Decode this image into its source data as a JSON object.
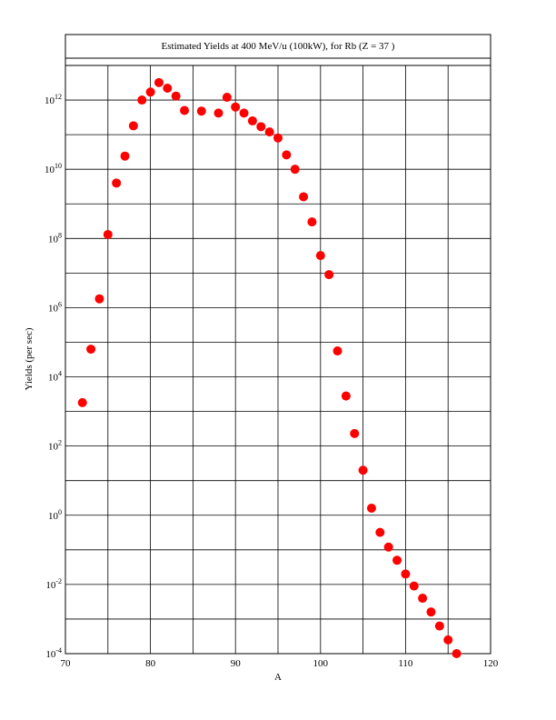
{
  "chart_data": {
    "type": "scatter",
    "title": "Estimated Yields at 400 MeV/u (100kW), for Rb (Z = 37 )",
    "xlabel": "A",
    "ylabel": "Yields (per sec)",
    "xlim": [
      70,
      120
    ],
    "ylim_log10": [
      -4,
      13
    ],
    "y_scale": "log",
    "grid": true,
    "marker_color": "#ff0000",
    "x_ticks": [
      "70",
      "80",
      "90",
      "100",
      "110",
      "120"
    ],
    "y_ticks": [
      {
        "base": "10",
        "exp": "-4"
      },
      {
        "base": "10",
        "exp": "-2"
      },
      {
        "base": "10",
        "exp": "0"
      },
      {
        "base": "10",
        "exp": "2"
      },
      {
        "base": "10",
        "exp": "4"
      },
      {
        "base": "10",
        "exp": "6"
      },
      {
        "base": "10",
        "exp": "8"
      },
      {
        "base": "10",
        "exp": "10"
      },
      {
        "base": "10",
        "exp": "12"
      }
    ],
    "series": [
      {
        "points": [
          {
            "x": 72,
            "y": 1800.0
          },
          {
            "x": 73,
            "y": 63000.0
          },
          {
            "x": 74,
            "y": 1800000.0
          },
          {
            "x": 75,
            "y": 130000000.0
          },
          {
            "x": 76,
            "y": 4000000000.0
          },
          {
            "x": 77,
            "y": 24000000000.0
          },
          {
            "x": 78,
            "y": 180000000000.0
          },
          {
            "x": 79,
            "y": 1000000000000.0
          },
          {
            "x": 80,
            "y": 1700000000000.0
          },
          {
            "x": 81,
            "y": 3200000000000.0
          },
          {
            "x": 82,
            "y": 2200000000000.0
          },
          {
            "x": 83,
            "y": 1300000000000.0
          },
          {
            "x": 84,
            "y": 500000000000.0
          },
          {
            "x": 86,
            "y": 480000000000.0
          },
          {
            "x": 88,
            "y": 420000000000.0
          },
          {
            "x": 89,
            "y": 1200000000000.0
          },
          {
            "x": 90,
            "y": 630000000000.0
          },
          {
            "x": 91,
            "y": 420000000000.0
          },
          {
            "x": 92,
            "y": 250000000000.0
          },
          {
            "x": 93,
            "y": 170000000000.0
          },
          {
            "x": 94,
            "y": 120000000000.0
          },
          {
            "x": 95,
            "y": 80000000000.0
          },
          {
            "x": 96,
            "y": 26000000000.0
          },
          {
            "x": 97,
            "y": 10000000000.0
          },
          {
            "x": 98,
            "y": 1600000000.0
          },
          {
            "x": 99,
            "y": 300000000.0
          },
          {
            "x": 100,
            "y": 32000000.0
          },
          {
            "x": 101,
            "y": 9000000.0
          },
          {
            "x": 102,
            "y": 56000.0
          },
          {
            "x": 103,
            "y": 2800.0
          },
          {
            "x": 104,
            "y": 230.0
          },
          {
            "x": 105,
            "y": 20
          },
          {
            "x": 106,
            "y": 1.6
          },
          {
            "x": 107,
            "y": 0.32
          },
          {
            "x": 108,
            "y": 0.12
          },
          {
            "x": 109,
            "y": 0.05
          },
          {
            "x": 110,
            "y": 0.02
          },
          {
            "x": 111,
            "y": 0.009
          },
          {
            "x": 112,
            "y": 0.004
          },
          {
            "x": 113,
            "y": 0.0016
          },
          {
            "x": 114,
            "y": 0.00063
          },
          {
            "x": 115,
            "y": 0.00025
          },
          {
            "x": 116,
            "y": 0.0001
          }
        ]
      }
    ]
  }
}
